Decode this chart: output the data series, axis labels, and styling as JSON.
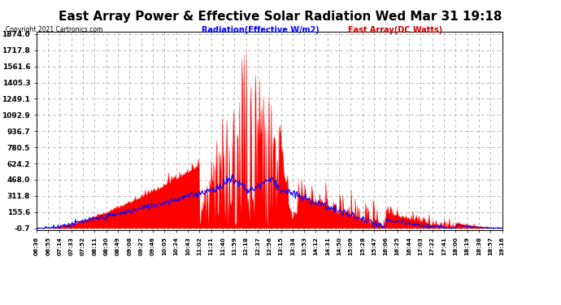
{
  "title": "East Array Power & Effective Solar Radiation Wed Mar 31 19:18",
  "copyright": "Copyright 2021 Cartronics.com",
  "legend_radiation": "Radiation(Effective W/m2)",
  "legend_east": "East Array(DC Watts)",
  "legend_radiation_color": "#0000ff",
  "legend_east_color": "#cc0000",
  "yticks": [
    -0.7,
    155.6,
    311.8,
    468.0,
    624.2,
    780.5,
    936.7,
    1092.9,
    1249.1,
    1405.3,
    1561.6,
    1717.8,
    1874.0
  ],
  "ymin": -0.7,
  "ymax": 1874.0,
  "background_color": "#ffffff",
  "plot_bg_color": "#ffffff",
  "grid_color": "#aaaaaa",
  "title_fontsize": 11,
  "xtick_labels": [
    "06:36",
    "06:55",
    "07:14",
    "07:33",
    "07:52",
    "08:11",
    "08:30",
    "08:49",
    "09:08",
    "09:27",
    "09:46",
    "10:05",
    "10:24",
    "10:43",
    "11:02",
    "11:21",
    "11:40",
    "11:59",
    "12:18",
    "12:37",
    "12:56",
    "13:15",
    "13:34",
    "13:53",
    "14:12",
    "14:31",
    "14:50",
    "15:09",
    "15:28",
    "15:47",
    "16:06",
    "16:25",
    "16:44",
    "17:03",
    "17:22",
    "17:41",
    "18:00",
    "18:19",
    "18:38",
    "18:57",
    "19:16"
  ]
}
